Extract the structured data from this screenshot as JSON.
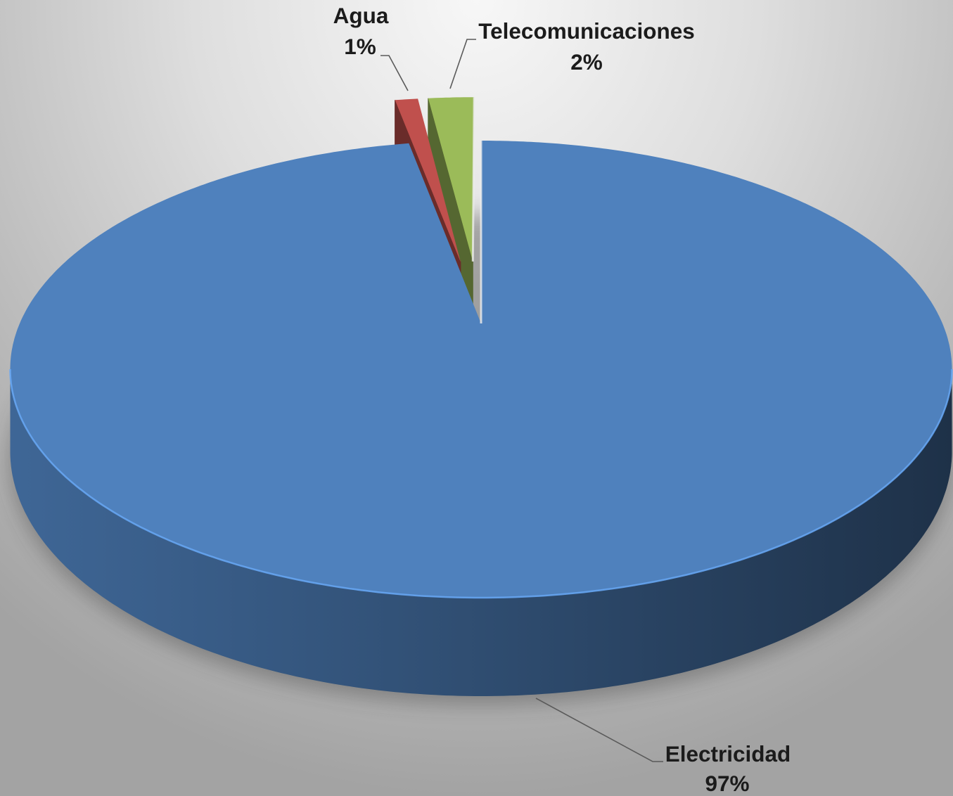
{
  "chart_data": {
    "type": "pie",
    "three_d": true,
    "slices": [
      {
        "label": "Electricidad",
        "value": 97,
        "value_label": "97%",
        "color": "#4F81BD",
        "exploded": false
      },
      {
        "label": "Agua",
        "value": 1,
        "value_label": "1%",
        "color": "#C0504D",
        "exploded": true
      },
      {
        "label": "Telecomunicaciones",
        "value": 2,
        "value_label": "2%",
        "color": "#9BBB59",
        "exploded": true
      }
    ]
  }
}
